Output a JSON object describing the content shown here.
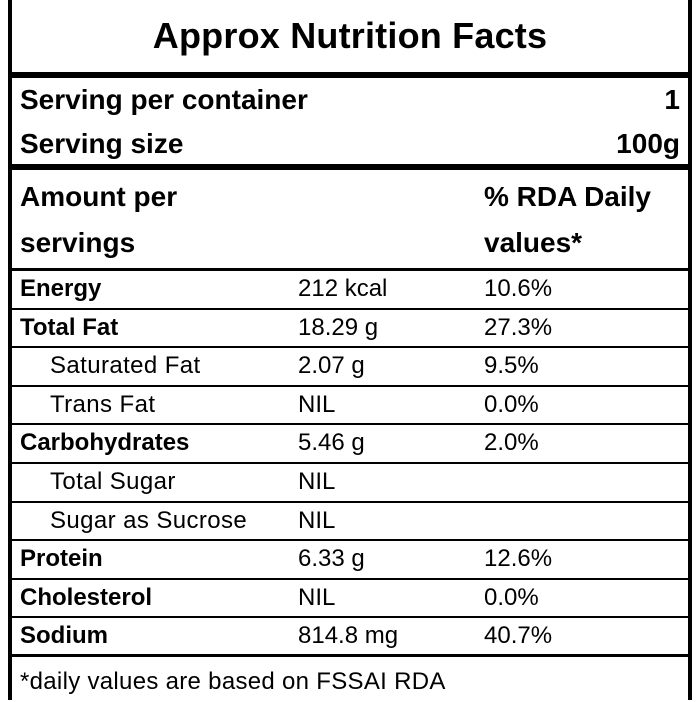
{
  "title": "Approx Nutrition Facts",
  "serving": {
    "per_container_label": "Serving per container",
    "per_container_value": "1",
    "size_label": "Serving size",
    "size_value": "100g"
  },
  "header": {
    "amount_line1": "Amount per",
    "amount_line2": "servings",
    "rda_line1": "% RDA Daily",
    "rda_line2": "values*"
  },
  "nutrients": [
    {
      "name": "Energy",
      "amount": "212 kcal",
      "rda": "10.6%"
    },
    {
      "name": "Total Fat",
      "amount": "18.29 g",
      "rda": "27.3%"
    },
    {
      "name": "Saturated Fat",
      "amount": "2.07 g",
      "rda": "9.5%"
    },
    {
      "name": "Trans Fat",
      "amount": "NIL",
      "rda": "0.0%"
    },
    {
      "name": "Carbohydrates",
      "amount": "5.46 g",
      "rda": "2.0%"
    },
    {
      "name": "Total Sugar",
      "amount": "NIL",
      "rda": ""
    },
    {
      "name": "Sugar as Sucrose",
      "amount": "NIL",
      "rda": ""
    },
    {
      "name": "Protein",
      "amount": "6.33 g",
      "rda": "12.6%"
    },
    {
      "name": "Cholesterol",
      "amount": "NIL",
      "rda": "0.0%"
    },
    {
      "name": "Sodium",
      "amount": "814.8 mg",
      "rda": "40.7%"
    }
  ],
  "footnote": "*daily values are based on FSSAI RDA"
}
